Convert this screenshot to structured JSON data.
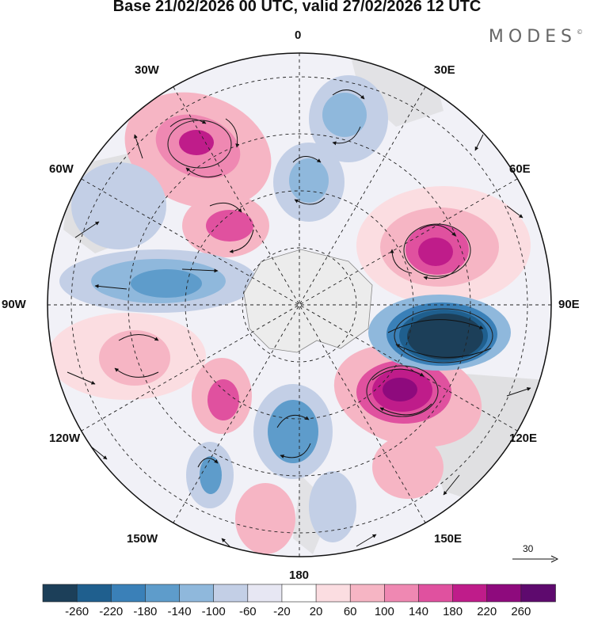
{
  "title": "Base 21/02/2026 00 UTC, valid 27/02/2026 12 UTC",
  "brand": {
    "text": "MODES",
    "mark": "©"
  },
  "longitude_labels": {
    "n0": "0",
    "n30e": "30E",
    "n60e": "60E",
    "e90": "90E",
    "n120e": "120E",
    "n150e": "150E",
    "s180": "180",
    "n150w": "150W",
    "n120w": "120W",
    "w90": "90W",
    "n60w": "60W",
    "n30w": "30W"
  },
  "reference_vector": {
    "label": "30"
  },
  "colorbar": {
    "labels": [
      "-260",
      "-220",
      "-180",
      "-140",
      "-100",
      "-60",
      "-20",
      "20",
      "60",
      "100",
      "140",
      "180",
      "220",
      "260"
    ],
    "colors": [
      "#1c3f59",
      "#1f5f8e",
      "#3a80b8",
      "#5e9ccb",
      "#8fb8dc",
      "#c3cfe6",
      "#e7e7f3",
      "#ffffff",
      "#fbdde1",
      "#f6b5c4",
      "#ef88b2",
      "#e0519f",
      "#bf1c8a",
      "#8e0a7d",
      "#5e0a6e"
    ]
  }
}
